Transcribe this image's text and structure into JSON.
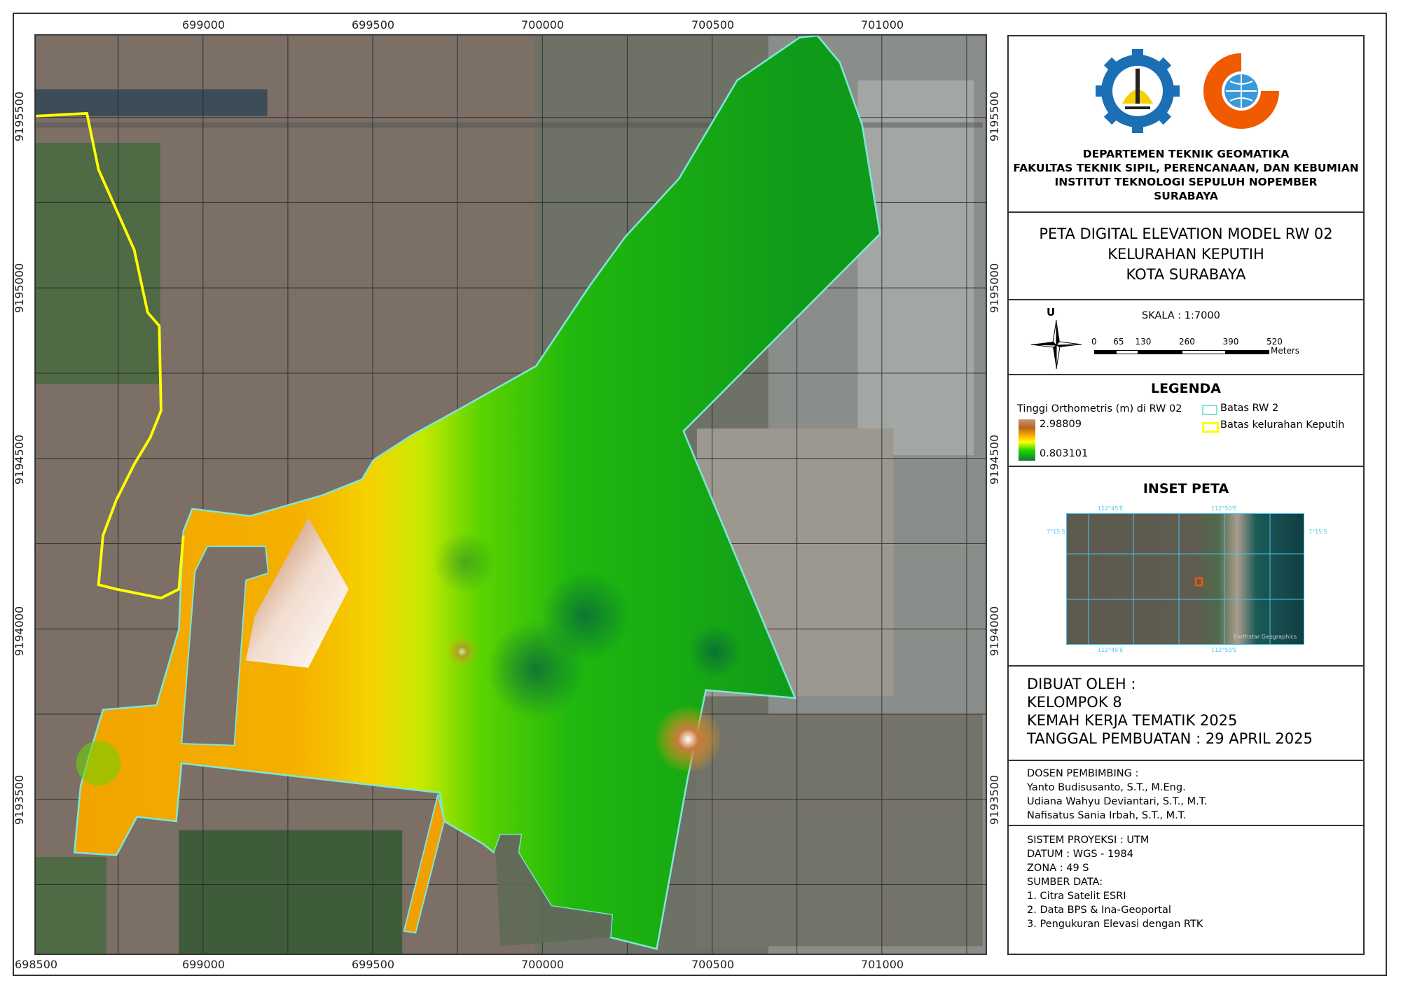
{
  "map": {
    "x_ticks": [
      "699000",
      "699500",
      "700000",
      "700500",
      "701000"
    ],
    "x_ticks_bottom": [
      "698500",
      "699000",
      "699500",
      "700000",
      "700500",
      "701000"
    ],
    "y_ticks_left": [
      "9195500",
      "9195000",
      "9194500",
      "9194000",
      "9193500"
    ],
    "y_ticks_right": [
      "9195500",
      "9195000",
      "9194500",
      "9194000",
      "9193500"
    ],
    "colors": {
      "rw_boundary": "#7fe6d8",
      "kelurahan_boundary": "#ffff00",
      "dem_high": "#b5651d",
      "dem_mid": "#ffd400",
      "dem_low": "#0f8f2a"
    }
  },
  "panel": {
    "logos": [
      "its-logo",
      "geomatika-logo"
    ],
    "institution": [
      "DEPARTEMEN TEKNIK GEOMATIKA",
      "FAKULTAS TEKNIK SIPIL, PERENCANAAN, DAN KEBUMIAN",
      "INSTITUT TEKNOLOGI SEPULUH NOPEMBER",
      "SURABAYA"
    ],
    "title": [
      "PETA DIGITAL ELEVATION MODEL RW 02",
      "KELURAHAN KEPUTIH",
      "KOTA SURABAYA"
    ],
    "north_label": "U",
    "scale_label": "SKALA : 1:7000",
    "scale_ticks": [
      "0",
      "65",
      "130",
      "260",
      "390",
      "520"
    ],
    "scale_unit": "Meters",
    "legend": {
      "title": "LEGENDA",
      "raster_title": "Tinggi Orthometris (m) di RW 02",
      "max": "2.98809",
      "min": "0.803101",
      "rw_label": "Batas RW 2",
      "kel_label": "Batas kelurahan Keputih"
    },
    "inset": {
      "title": "INSET PETA",
      "lon_labels": [
        "112°45'E",
        "112°50'E"
      ],
      "lat_label": "7°15'S",
      "attribution": "Earthstar Geographics"
    },
    "credits": [
      "DIBUAT OLEH :",
      "KELOMPOK 8",
      "KEMAH KERJA TEMATIK 2025",
      "TANGGAL PEMBUATAN : 29 APRIL 2025"
    ],
    "supervisors": [
      "DOSEN PEMBIMBING :",
      "Yanto Budisusanto, S.T., M.Eng.",
      "Udiana Wahyu Deviantari, S.T., M.T.",
      "Nafisatus Sania Irbah, S.T., M.T."
    ],
    "system": [
      "SISTEM PROYEKSI : UTM",
      "DATUM : WGS - 1984",
      "ZONA : 49 S",
      "SUMBER DATA:",
      "1. Citra Satelit ESRI",
      "2. Data BPS & Ina-Geoportal",
      "3. Pengukuran Elevasi dengan RTK"
    ]
  }
}
